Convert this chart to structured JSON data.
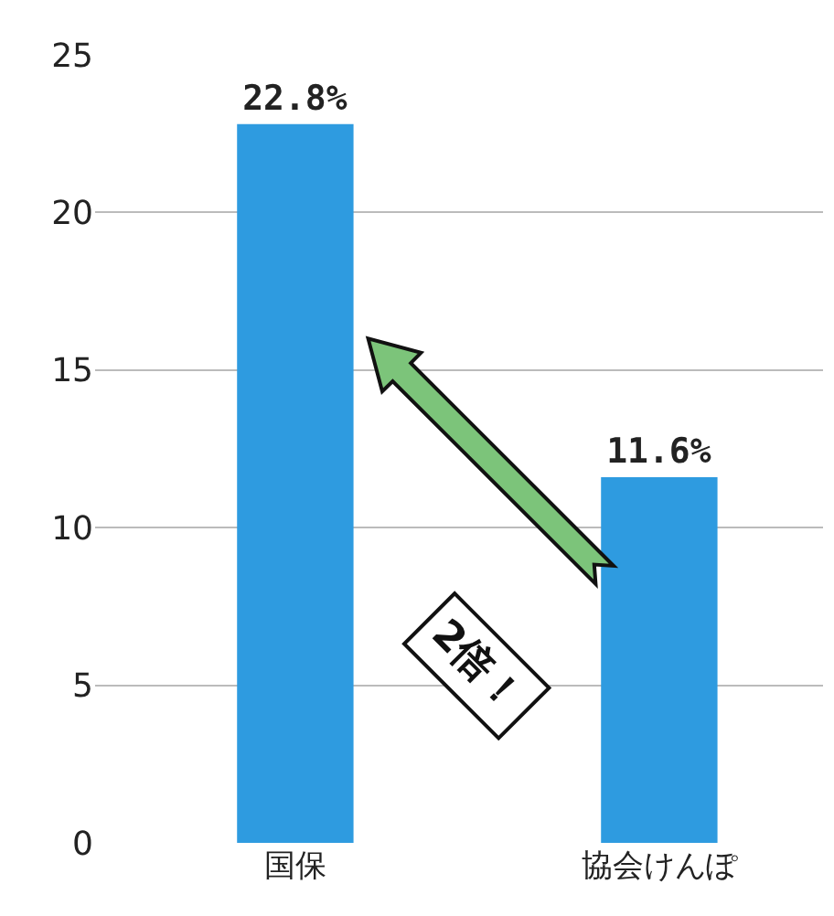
{
  "chart_data": {
    "type": "bar",
    "categories": [
      "国保",
      "協会けんぽ"
    ],
    "values": [
      22.8,
      11.6
    ],
    "value_labels": [
      "22.8%",
      "11.6%"
    ],
    "color": "#2e9be0",
    "ylim": [
      0,
      25
    ],
    "yticks": [
      0,
      5,
      10,
      15,
      20,
      25
    ],
    "grid": "y",
    "annotations": [
      "2倍！"
    ]
  }
}
